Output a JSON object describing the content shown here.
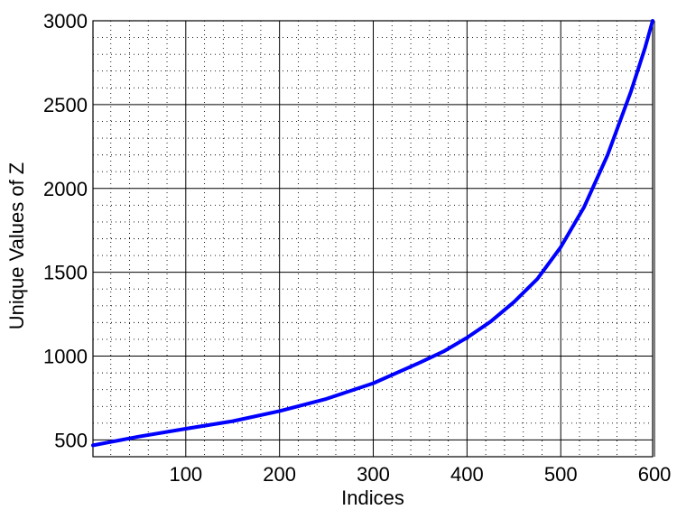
{
  "chart_data": {
    "type": "line",
    "title": "",
    "xlabel": "Indices",
    "ylabel": "Unique Values of Z",
    "xlim": [
      1,
      598
    ],
    "ylim": [
      400,
      3000
    ],
    "xticks": [
      100,
      200,
      300,
      400,
      500,
      600
    ],
    "yticks": [
      500,
      1000,
      1500,
      2000,
      2500,
      3000
    ],
    "xtick_labels": [
      "100",
      "200",
      "300",
      "400",
      "500",
      "600"
    ],
    "ytick_labels": [
      "500",
      "1000",
      "1500",
      "2000",
      "2500",
      "3000"
    ],
    "grid": true,
    "minor_grid": true,
    "series": [
      {
        "color": "#0000ff",
        "x": [
          1,
          50,
          100,
          150,
          200,
          250,
          300,
          350,
          375,
          400,
          425,
          450,
          475,
          500,
          525,
          550,
          575,
          590,
          598
        ],
        "y": [
          468,
          520,
          567,
          612,
          672,
          745,
          838,
          962,
          1028,
          1110,
          1205,
          1322,
          1460,
          1650,
          1890,
          2200,
          2580,
          2840,
          3000
        ]
      }
    ]
  }
}
